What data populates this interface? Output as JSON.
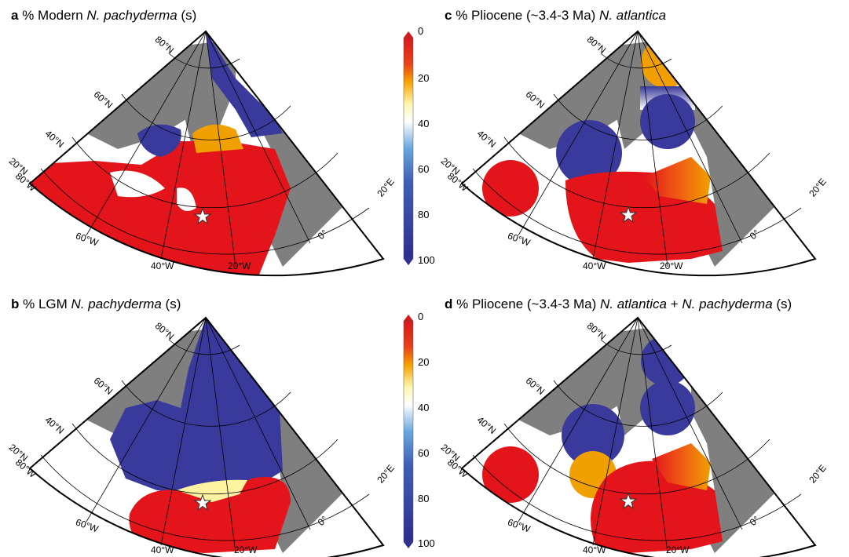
{
  "panels": [
    {
      "letter": "a",
      "pre": "% Modern ",
      "species": "N. pachyderma",
      "post": " (s)"
    },
    {
      "letter": "b",
      "pre": "% LGM ",
      "species": "N. pachyderma",
      "post": " (s)"
    },
    {
      "letter": "c",
      "pre": "% Pliocene (~3.4-3 Ma) ",
      "species": "N. atlantica",
      "post": ""
    },
    {
      "letter": "d",
      "pre": "% Pliocene (~3.4-3 Ma) ",
      "species": "N. atlantica",
      "mid": " + ",
      "species2": "N. pachyderma",
      "post": " (s)"
    }
  ],
  "graticule": {
    "lat_labels": [
      "80°N",
      "60°N",
      "40°N",
      "20°N"
    ],
    "lon_labels": [
      "80°W",
      "60°W",
      "40°W",
      "20°W",
      "0°",
      "20°E"
    ]
  },
  "colorbar": {
    "ticks": [
      "0",
      "20",
      "40",
      "60",
      "80",
      "100"
    ],
    "colors": {
      "low": "#d7191c",
      "mid_orange": "#f5a300",
      "mid_white": "#ffffff",
      "mid_blue": "#6aa8e0",
      "high": "#2e2e8f"
    }
  },
  "colors": {
    "land": "#7f7f7f",
    "red": "#e3151b",
    "blue": "#3a3a9c",
    "orange": "#f0a000",
    "star": "#ffffff"
  }
}
